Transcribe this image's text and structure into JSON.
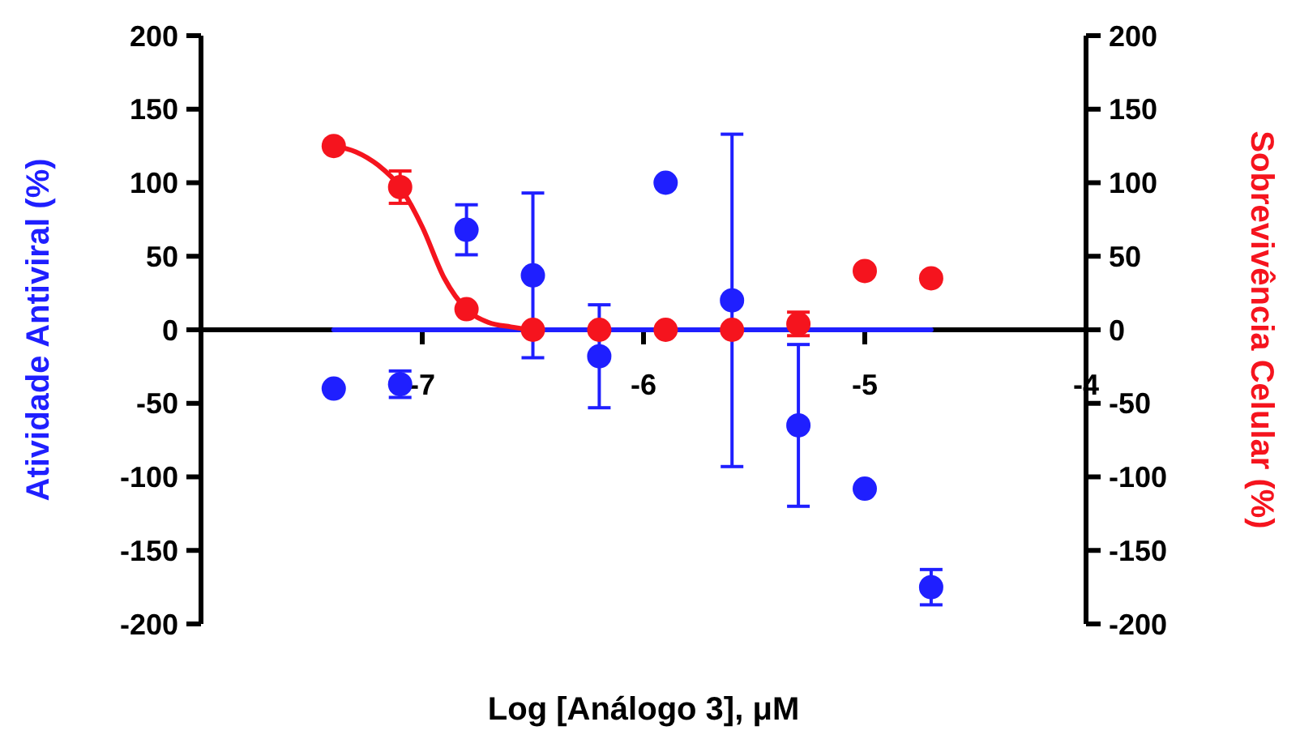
{
  "chart_data": {
    "type": "scatter",
    "xlabel": "Log [Análogo 3], μM",
    "ylabel": "Atividade Antiviral (%)",
    "y2label": "Sobrevivência Celular (%)",
    "xlim": [
      -8,
      -4
    ],
    "xticks": [
      -7,
      -6,
      -5,
      -4
    ],
    "ylim": [
      -200,
      200
    ],
    "yticks": [
      -200,
      -150,
      -100,
      -50,
      0,
      50,
      100,
      150,
      200
    ],
    "y2lim": [
      -200,
      200
    ],
    "y2ticks": [
      -200,
      -150,
      -100,
      -50,
      0,
      50,
      100,
      150,
      200
    ],
    "marker": "circle",
    "series": [
      {
        "type": "line",
        "marker": "none",
        "color": "#1f1fff",
        "x": [
          -7.4,
          -4.7
        ],
        "values": [
          0,
          0
        ]
      },
      {
        "type": "line",
        "marker": "none",
        "axis": "y2",
        "color": "#f5141e",
        "x": [
          -7.4,
          -7.3,
          -7.2,
          -7.1,
          -7.0,
          -6.9,
          -6.8,
          -6.7,
          -6.6,
          -6.5
        ],
        "values": [
          125,
          121,
          112,
          97,
          70,
          35,
          14,
          5,
          2,
          0
        ]
      },
      {
        "color": "#1f1fff",
        "x": [
          -7.4,
          -7.1,
          -6.8,
          -6.5,
          -6.2,
          -5.9,
          -5.6,
          -5.3,
          -5.0,
          -4.7
        ],
        "values": [
          -40,
          -37,
          68,
          37,
          -18,
          100,
          20,
          -65,
          -108,
          -175
        ],
        "errors": [
          null,
          9,
          17,
          56,
          35,
          null,
          113,
          55,
          null,
          12
        ]
      },
      {
        "axis": "y2",
        "color": "#f5141e",
        "x": [
          -7.4,
          -7.1,
          -6.8,
          -6.5,
          -6.2,
          -5.9,
          -5.6,
          -5.3,
          -5.0,
          -4.7
        ],
        "values": [
          125,
          97,
          14,
          0,
          0,
          0,
          0,
          4,
          40,
          35
        ],
        "errors": [
          null,
          11,
          null,
          null,
          null,
          null,
          null,
          8,
          null,
          null
        ]
      }
    ]
  }
}
